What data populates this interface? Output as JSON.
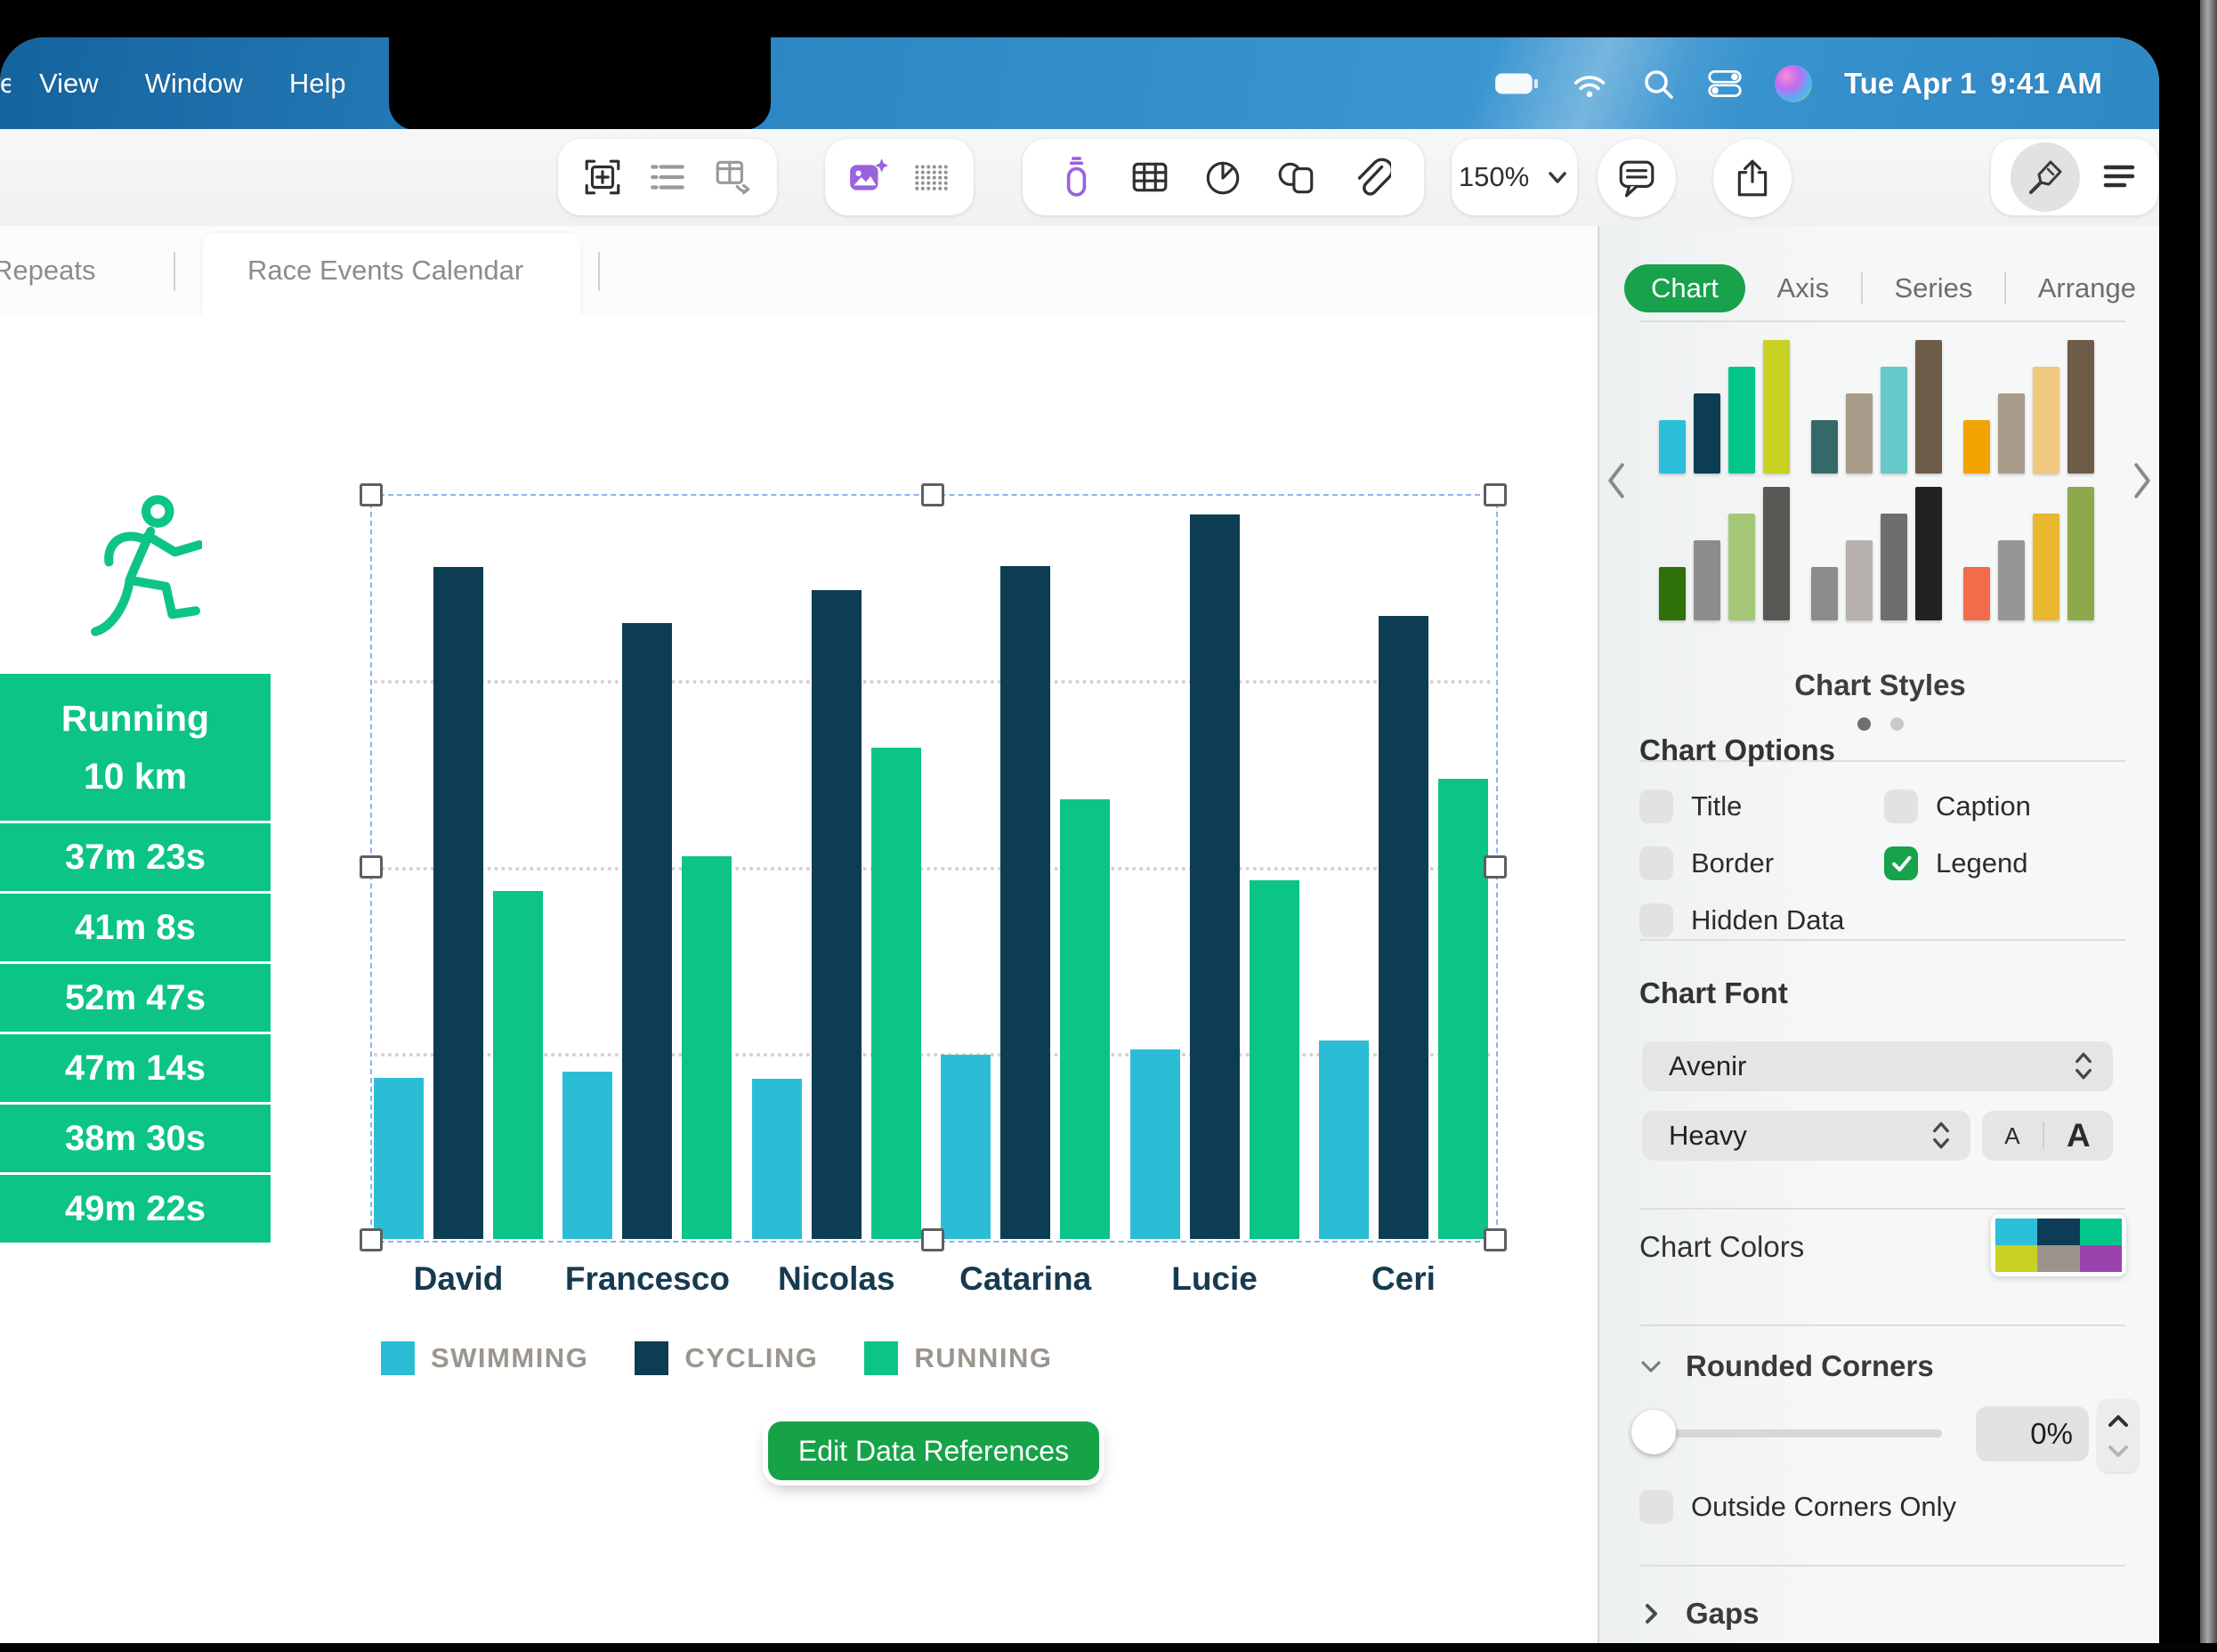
{
  "menu_bar": {
    "clipped_item": "e",
    "items": [
      "View",
      "Window",
      "Help"
    ],
    "status": {
      "icons": [
        "battery-icon",
        "wifi-icon",
        "search-icon",
        "control-center-icon",
        "siri-icon"
      ],
      "date": "Tue Apr 1",
      "time": "9:41 AM"
    }
  },
  "toolbar": {
    "groups": [
      {
        "icons": [
          "insert-box-icon",
          "bullet-list-icon",
          "insert-table-icon"
        ]
      },
      {
        "icons": [
          "photo-sparkle-icon",
          "dots-grid-icon"
        ]
      },
      {
        "icons": [
          "marker-icon",
          "table-icon",
          "pie-chart-icon",
          "shapes-icon",
          "paperclip-icon"
        ]
      }
    ],
    "zoom": {
      "label": "150%",
      "icon": "chevron-down-icon"
    },
    "actions": [
      {
        "icon": "comment-icon"
      },
      {
        "icon": "share-icon"
      }
    ],
    "format": {
      "icon": "brush-icon"
    },
    "view_menu": {
      "icon": "lines-icon"
    }
  },
  "sheet_tabs": {
    "tabs": [
      {
        "label": "Repeats",
        "active": false
      },
      {
        "label": "Race Events Calendar",
        "active": true
      }
    ]
  },
  "stats_table": {
    "title": "Running",
    "subtitle": "10 km",
    "rows": [
      "37m 23s",
      "41m 8s",
      "52m 47s",
      "47m 14s",
      "38m 30s",
      "49m 22s"
    ]
  },
  "chart_data": {
    "type": "bar",
    "title": "",
    "categories": [
      "David",
      "Francesco",
      "Nicolas",
      "Catarina",
      "Lucie",
      "Ceri"
    ],
    "series": [
      {
        "name": "SWIMMING",
        "color": "#2cbdd6",
        "values": [
          17.3,
          18.0,
          17.2,
          19.8,
          20.4,
          21.3
        ]
      },
      {
        "name": "CYCLING",
        "color": "#0d3d52",
        "values": [
          72.2,
          66.1,
          69.7,
          72.3,
          77.8,
          66.9
        ]
      },
      {
        "name": "RUNNING",
        "color": "#0cc487",
        "values": [
          37.4,
          41.1,
          52.8,
          47.2,
          38.5,
          49.4
        ]
      }
    ],
    "unit": "minutes",
    "ylim": [
      0,
      80
    ],
    "gridlines": [
      20,
      40,
      60
    ],
    "grid": "dotted",
    "legend_position": "bottom",
    "selected": true
  },
  "edit_button": {
    "label": "Edit Data References"
  },
  "sidebar": {
    "accent": "#17a24b",
    "tabs": [
      {
        "label": "Chart",
        "active": true
      },
      {
        "label": "Axis",
        "active": false
      },
      {
        "label": "Series",
        "active": false
      },
      {
        "label": "Arrange",
        "active": false
      }
    ],
    "styles": {
      "label": "Chart Styles",
      "bar_heights": [
        60,
        90,
        120,
        150
      ],
      "thumbnails": [
        {
          "colors": [
            "#2cbfd9",
            "#0d3c55",
            "#00c689",
            "#c9d123"
          ]
        },
        {
          "colors": [
            "#336a69",
            "#a89a8a",
            "#66c8c8",
            "#6d5c47"
          ]
        },
        {
          "colors": [
            "#f2a402",
            "#a89a8a",
            "#f0c880",
            "#6d5c47"
          ]
        },
        {
          "colors": [
            "#2f7009",
            "#8c8c8c",
            "#a5c878",
            "#585854"
          ]
        },
        {
          "colors": [
            "#8c8c8c",
            "#b6b1ac",
            "#6e6e6e",
            "#222222"
          ]
        },
        {
          "colors": [
            "#f26b4a",
            "#969696",
            "#eab82e",
            "#8ea84c"
          ]
        }
      ],
      "dots": 2,
      "active_dot": 0
    },
    "options": {
      "heading": "Chart Options",
      "checkboxes": [
        {
          "label": "Title",
          "checked": false
        },
        {
          "label": "Caption",
          "checked": false
        },
        {
          "label": "Border",
          "checked": false
        },
        {
          "label": "Legend",
          "checked": true
        },
        {
          "label": "Hidden Data",
          "checked": false
        }
      ]
    },
    "font": {
      "heading": "Chart Font",
      "family": "Avenir",
      "weight": "Heavy",
      "size_small": "A",
      "size_large": "A"
    },
    "colors": {
      "label": "Chart Colors",
      "swatches": [
        "#2cbfd9",
        "#0d3c55",
        "#00c689",
        "#c9d123",
        "#9b948a",
        "#9b42ad"
      ]
    },
    "rounded": {
      "label": "Rounded Corners",
      "value": "0%"
    },
    "outside_corners": {
      "label": "Outside Corners Only",
      "checked": false
    },
    "gaps": {
      "label": "Gaps"
    }
  },
  "colors": {
    "menubar_blue": "#2b85c2",
    "accent_green": "#17a24b",
    "button_green": "#16a348",
    "table_green": "#0cc488"
  }
}
